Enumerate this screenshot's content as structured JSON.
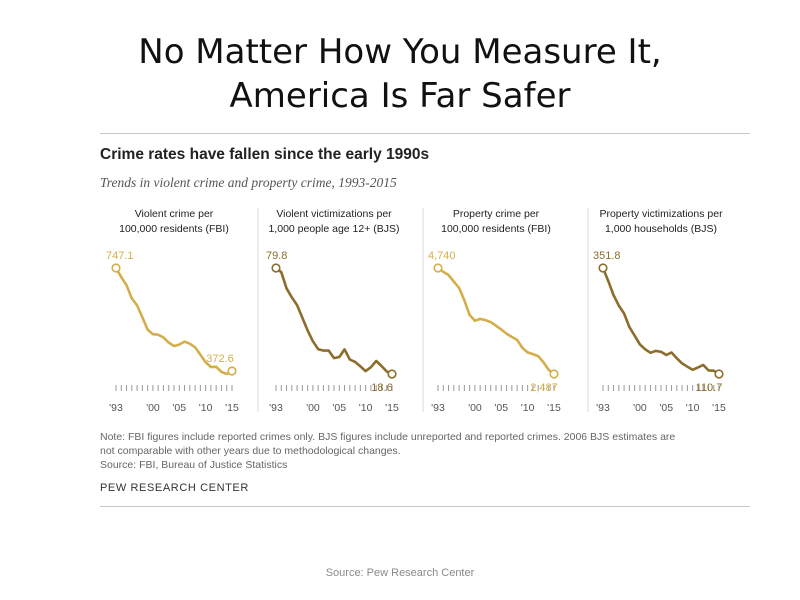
{
  "slide": {
    "title_line1": "No Matter How You Measure It,",
    "title_line2": "America Is Far Safer",
    "source": "Source: Pew Research Center"
  },
  "colors": {
    "fbi": "#d4ae4a",
    "bjs": "#8c6d2c",
    "divider": "#d8d8d8",
    "axis_tick": "#999999"
  },
  "chart_data": [
    {
      "type": "line",
      "title": "Violent crime per 100,000 residents (FBI)",
      "title_lines": [
        "Violent crime per",
        "100,000 residents (FBI)"
      ],
      "color": "fbi",
      "x": [
        1993,
        1994,
        1995,
        1996,
        1997,
        1998,
        1999,
        2000,
        2001,
        2002,
        2003,
        2004,
        2005,
        2006,
        2007,
        2008,
        2009,
        2010,
        2011,
        2012,
        2013,
        2014,
        2015
      ],
      "y": [
        747.1,
        713.6,
        684.5,
        636.6,
        611.0,
        567.6,
        523.0,
        506.5,
        504.5,
        494.4,
        475.8,
        463.2,
        469.0,
        479.3,
        471.8,
        458.6,
        431.9,
        404.5,
        387.1,
        387.8,
        369.1,
        361.6,
        372.6
      ],
      "start_label": "747.1",
      "end_label": "372.6",
      "xticks": [
        "'93",
        "'00",
        "'05",
        "'10",
        "'15"
      ],
      "ylim": [
        0,
        800
      ]
    },
    {
      "type": "line",
      "title": "Violent victimizations per 1,000 people age 12+ (BJS)",
      "title_lines": [
        "Violent victimizations per",
        "1,000 people age 12+ (BJS)"
      ],
      "color": "bjs",
      "x": [
        1993,
        1994,
        1995,
        1996,
        1997,
        1998,
        1999,
        2000,
        2001,
        2002,
        2003,
        2004,
        2005,
        2006,
        2007,
        2008,
        2009,
        2010,
        2011,
        2012,
        2013,
        2014,
        2015
      ],
      "y": [
        79.8,
        77.4,
        68.1,
        62.9,
        58.4,
        51.0,
        43.8,
        37.5,
        32.9,
        32.1,
        32.1,
        27.8,
        28.4,
        32.8,
        27.0,
        25.6,
        23.0,
        20.3,
        22.5,
        26.1,
        23.2,
        20.1,
        18.6
      ],
      "start_label": "79.8",
      "end_label": "18.6",
      "xticks": [
        "'93",
        "'00",
        "'05",
        "'10",
        "'15"
      ],
      "ylim": [
        0,
        85
      ]
    },
    {
      "type": "line",
      "title": "Property crime per 100,000 residents (FBI)",
      "title_lines": [
        "Property crime per",
        "100,000 residents (FBI)"
      ],
      "color": "fbi",
      "x": [
        1993,
        1994,
        1995,
        1996,
        1997,
        1998,
        1999,
        2000,
        2001,
        2002,
        2003,
        2004,
        2005,
        2006,
        2007,
        2008,
        2009,
        2010,
        2011,
        2012,
        2013,
        2014,
        2015
      ],
      "y": [
        4740,
        4660,
        4591,
        4451,
        4316,
        4052,
        3744,
        3618,
        3658,
        3631,
        3591,
        3514,
        3431,
        3346,
        3276,
        3212,
        3041,
        2946,
        2909,
        2868,
        2734,
        2574,
        2487
      ],
      "start_label": "4,740",
      "end_label": "2,487",
      "xticks": [
        "'93",
        "'00",
        "'05",
        "'10",
        "'15"
      ],
      "ylim": [
        0,
        5000
      ]
    },
    {
      "type": "line",
      "title": "Property victimizations per 1,000 households (BJS)",
      "title_lines": [
        "Property victimizations per",
        "1,000 households (BJS)"
      ],
      "color": "bjs",
      "x": [
        1993,
        1994,
        1995,
        1996,
        1997,
        1998,
        1999,
        2000,
        2001,
        2002,
        2003,
        2004,
        2005,
        2006,
        2007,
        2008,
        2009,
        2010,
        2011,
        2012,
        2013,
        2014,
        2015
      ],
      "y": [
        351.8,
        322.1,
        290.5,
        266.3,
        248.3,
        217.4,
        198.0,
        178.1,
        166.9,
        159.0,
        163.2,
        161.1,
        154.0,
        159.5,
        146.5,
        134.7,
        127.4,
        120.2,
        125.4,
        131.4,
        118.8,
        118.1,
        110.7
      ],
      "start_label": "351.8",
      "end_label": "110.7",
      "xticks": [
        "'93",
        "'00",
        "'05",
        "'10",
        "'15"
      ],
      "ylim": [
        0,
        380
      ]
    }
  ],
  "chart_header": {
    "title": "Crime rates have fallen since the early 1990s",
    "subtitle": "Trends in violent crime and property crime, 1993-2015"
  },
  "note": {
    "line1": "Note: FBI figures include reported crimes only. BJS figures include unreported and reported crimes. 2006 BJS estimates are",
    "line2": "not comparable with other years due to methodological changes.",
    "line3": "Source: FBI, Bureau of Justice Statistics"
  },
  "brand": "PEW RESEARCH CENTER"
}
